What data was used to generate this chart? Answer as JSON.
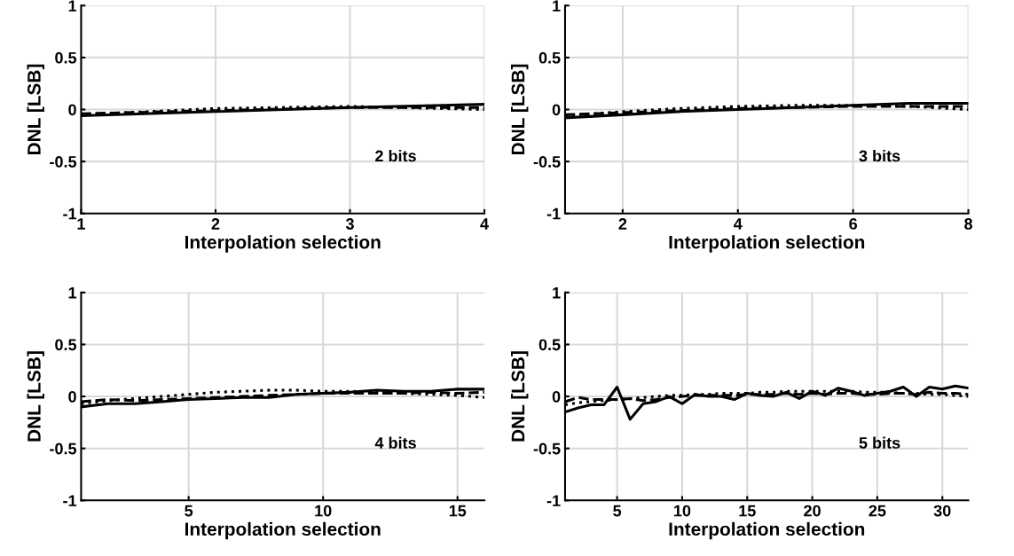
{
  "chart_data": [
    {
      "type": "line",
      "x": [
        1,
        2,
        3,
        4
      ],
      "xlabel": "Interpolation selection",
      "ylabel": "DNL [LSB]",
      "annotations": [
        "2 bits"
      ],
      "xlim": [
        1,
        4
      ],
      "ylim": [
        -1,
        1
      ],
      "xticks": [
        1,
        2,
        3,
        4
      ],
      "yticks": [
        -1,
        -0.5,
        0,
        0.5,
        1
      ],
      "grid": true,
      "series": [
        {
          "color": "#000000",
          "line_style": "solid",
          "values": [
            -0.06,
            -0.02,
            0.02,
            0.05
          ]
        },
        {
          "color": "#000000",
          "line_style": "dashed",
          "values": [
            -0.04,
            -0.01,
            0.02,
            0.02
          ]
        },
        {
          "color": "#000000",
          "line_style": "dotted",
          "values": [
            -0.05,
            0.01,
            0.03,
            0.0
          ]
        }
      ]
    },
    {
      "type": "line",
      "x": [
        1,
        2,
        3,
        4,
        5,
        6,
        7,
        8
      ],
      "xlabel": "Interpolation selection",
      "ylabel": "DNL [LSB]",
      "annotations": [
        "3 bits"
      ],
      "xlim": [
        1,
        8
      ],
      "ylim": [
        -1,
        1
      ],
      "xticks": [
        2,
        4,
        6,
        8
      ],
      "yticks": [
        -1,
        -0.5,
        0,
        0.5,
        1
      ],
      "grid": true,
      "series": [
        {
          "color": "#000000",
          "line_style": "solid",
          "values": [
            -0.08,
            -0.05,
            -0.02,
            0.0,
            0.02,
            0.04,
            0.06,
            0.06
          ]
        },
        {
          "color": "#000000",
          "line_style": "dashed",
          "values": [
            -0.05,
            -0.03,
            -0.01,
            0.01,
            0.02,
            0.03,
            0.03,
            0.03
          ]
        },
        {
          "color": "#000000",
          "line_style": "dotted",
          "values": [
            -0.06,
            -0.02,
            0.01,
            0.03,
            0.04,
            0.04,
            0.03,
            0.0
          ]
        }
      ]
    },
    {
      "type": "line",
      "x": [
        1,
        2,
        3,
        4,
        5,
        6,
        7,
        8,
        9,
        10,
        11,
        12,
        13,
        14,
        15,
        16
      ],
      "xlabel": "Interpolation selection",
      "ylabel": "DNL [LSB]",
      "annotations": [
        "4 bits"
      ],
      "xlim": [
        1,
        16
      ],
      "ylim": [
        -1,
        1
      ],
      "xticks": [
        5,
        10,
        15
      ],
      "yticks": [
        -1,
        -0.5,
        0,
        0.5,
        1
      ],
      "grid": true,
      "series": [
        {
          "color": "#000000",
          "line_style": "solid",
          "values": [
            -0.1,
            -0.07,
            -0.07,
            -0.05,
            -0.03,
            -0.02,
            -0.01,
            -0.01,
            0.02,
            0.03,
            0.04,
            0.06,
            0.05,
            0.05,
            0.07,
            0.07
          ]
        },
        {
          "color": "#000000",
          "line_style": "dashed",
          "values": [
            -0.05,
            -0.03,
            -0.04,
            -0.03,
            -0.02,
            -0.01,
            0.0,
            0.01,
            0.02,
            0.03,
            0.03,
            0.03,
            0.03,
            0.04,
            0.03,
            0.04
          ]
        },
        {
          "color": "#000000",
          "line_style": "dotted",
          "values": [
            -0.07,
            -0.04,
            -0.02,
            0.0,
            0.02,
            0.04,
            0.05,
            0.06,
            0.06,
            0.05,
            0.05,
            0.04,
            0.03,
            0.02,
            0.01,
            -0.01
          ]
        }
      ]
    },
    {
      "type": "line",
      "x": [
        1,
        2,
        3,
        4,
        5,
        6,
        7,
        8,
        9,
        10,
        11,
        12,
        13,
        14,
        15,
        16,
        17,
        18,
        19,
        20,
        21,
        22,
        23,
        24,
        25,
        26,
        27,
        28,
        29,
        30,
        31,
        32
      ],
      "xlabel": "Interpolation selection",
      "ylabel": "DNL [LSB]",
      "annotations": [
        "5 bits"
      ],
      "xlim": [
        1,
        32
      ],
      "ylim": [
        -1,
        1
      ],
      "xticks": [
        5,
        10,
        15,
        20,
        25,
        30
      ],
      "yticks": [
        -1,
        -0.5,
        0,
        0.5,
        1
      ],
      "grid": true,
      "series": [
        {
          "color": "#000000",
          "line_style": "solid",
          "values": [
            -0.15,
            -0.11,
            -0.08,
            -0.08,
            0.09,
            -0.22,
            -0.07,
            -0.05,
            0.0,
            -0.07,
            0.02,
            0.0,
            0.0,
            -0.03,
            0.03,
            0.01,
            0.0,
            0.04,
            -0.02,
            0.05,
            0.01,
            0.08,
            0.05,
            0.01,
            0.03,
            0.05,
            0.09,
            0.0,
            0.09,
            0.07,
            0.1,
            0.08
          ]
        },
        {
          "color": "#000000",
          "line_style": "dashed",
          "values": [
            -0.05,
            -0.01,
            -0.03,
            -0.03,
            -0.03,
            -0.02,
            -0.04,
            -0.03,
            -0.01,
            0.0,
            0.01,
            0.01,
            0.01,
            0.01,
            0.02,
            0.02,
            0.02,
            0.03,
            0.02,
            0.03,
            0.02,
            0.03,
            0.03,
            0.02,
            0.02,
            0.03,
            0.03,
            0.02,
            0.04,
            0.03,
            0.03,
            0.02
          ]
        },
        {
          "color": "#000000",
          "line_style": "dotted",
          "values": [
            -0.08,
            -0.06,
            -0.05,
            -0.04,
            -0.03,
            -0.02,
            -0.01,
            0.0,
            0.01,
            0.01,
            0.02,
            0.02,
            0.03,
            0.03,
            0.03,
            0.04,
            0.04,
            0.05,
            0.05,
            0.05,
            0.05,
            0.05,
            0.05,
            0.04,
            0.04,
            0.04,
            0.03,
            0.03,
            0.02,
            0.02,
            0.01,
            0.0
          ]
        }
      ]
    }
  ]
}
